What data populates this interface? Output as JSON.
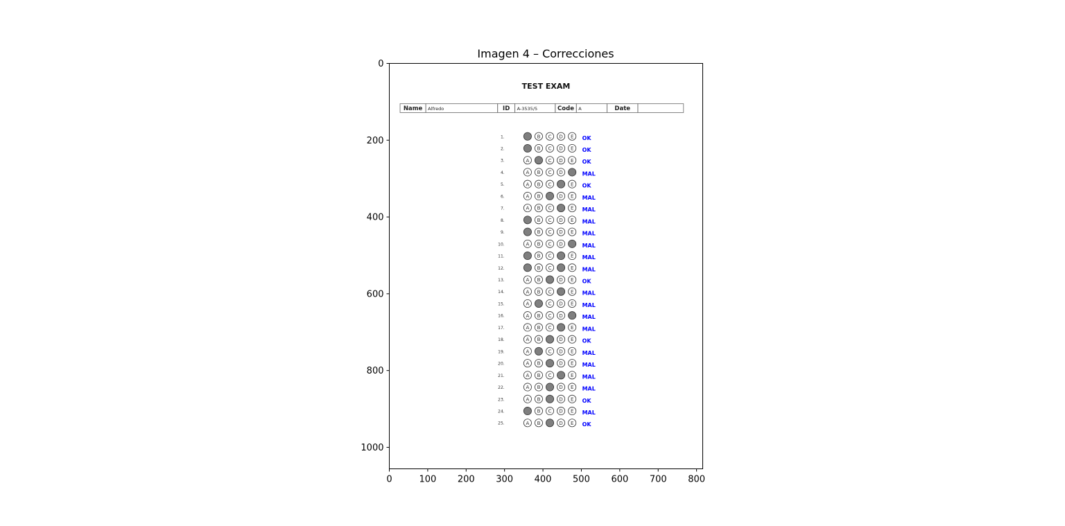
{
  "chart_data": {
    "type": "image",
    "title": "Imagen 4 – Correcciones",
    "xlabel": "",
    "ylabel": "",
    "xlim": [
      0,
      816
    ],
    "ylim": [
      1056,
      0
    ],
    "xticks": [
      0,
      100,
      200,
      300,
      400,
      500,
      600,
      700,
      800
    ],
    "yticks": [
      0,
      200,
      400,
      600,
      800,
      1000
    ],
    "grid": false,
    "legend": "none"
  },
  "sheet": {
    "heading": "TEST EXAM",
    "fields": {
      "name_label": "Name",
      "name_value": "Alfredo",
      "id_label": "ID",
      "id_value": "A-3535/5",
      "code_label": "Code",
      "code_value": "A",
      "date_label": "Date",
      "date_value": ""
    },
    "option_letters": [
      "A",
      "B",
      "C",
      "D",
      "E"
    ],
    "questions": [
      {
        "label": "1.",
        "marked": "A",
        "result": "OK"
      },
      {
        "label": "2.",
        "marked": "A",
        "result": "OK"
      },
      {
        "label": "3.",
        "marked": "B",
        "result": "OK"
      },
      {
        "label": "4.",
        "marked": "E",
        "result": "MAL"
      },
      {
        "label": "5.",
        "marked": "D",
        "result": "OK"
      },
      {
        "label": "6.",
        "marked": "C",
        "result": "MAL"
      },
      {
        "label": "7.",
        "marked": "D",
        "result": "MAL"
      },
      {
        "label": "8.",
        "marked": "A",
        "result": "MAL"
      },
      {
        "label": "9.",
        "marked": "A",
        "result": "MAL"
      },
      {
        "label": "10.",
        "marked": "E",
        "result": "MAL"
      },
      {
        "label": "11.",
        "marked": "AD",
        "result": "MAL"
      },
      {
        "label": "12.",
        "marked": "AD",
        "result": "MAL"
      },
      {
        "label": "13.",
        "marked": "C",
        "result": "OK"
      },
      {
        "label": "14.",
        "marked": "D",
        "result": "MAL"
      },
      {
        "label": "15.",
        "marked": "B",
        "result": "MAL"
      },
      {
        "label": "16.",
        "marked": "E",
        "result": "MAL"
      },
      {
        "label": "17.",
        "marked": "D",
        "result": "MAL"
      },
      {
        "label": "18.",
        "marked": "C",
        "result": "OK"
      },
      {
        "label": "19.",
        "marked": "B",
        "result": "MAL"
      },
      {
        "label": "20.",
        "marked": "C",
        "result": "MAL"
      },
      {
        "label": "21.",
        "marked": "D",
        "result": "MAL"
      },
      {
        "label": "22.",
        "marked": "C",
        "result": "MAL"
      },
      {
        "label": "23.",
        "marked": "C",
        "result": "OK"
      },
      {
        "label": "24.",
        "marked": "A",
        "result": "MAL"
      },
      {
        "label": "25.",
        "marked": "C",
        "result": "OK"
      }
    ],
    "colors": {
      "filled_bubble": "#7f7f7f",
      "bubble_stroke": "#333333",
      "result_text": "#0000ff",
      "field_border": "#666666"
    }
  }
}
